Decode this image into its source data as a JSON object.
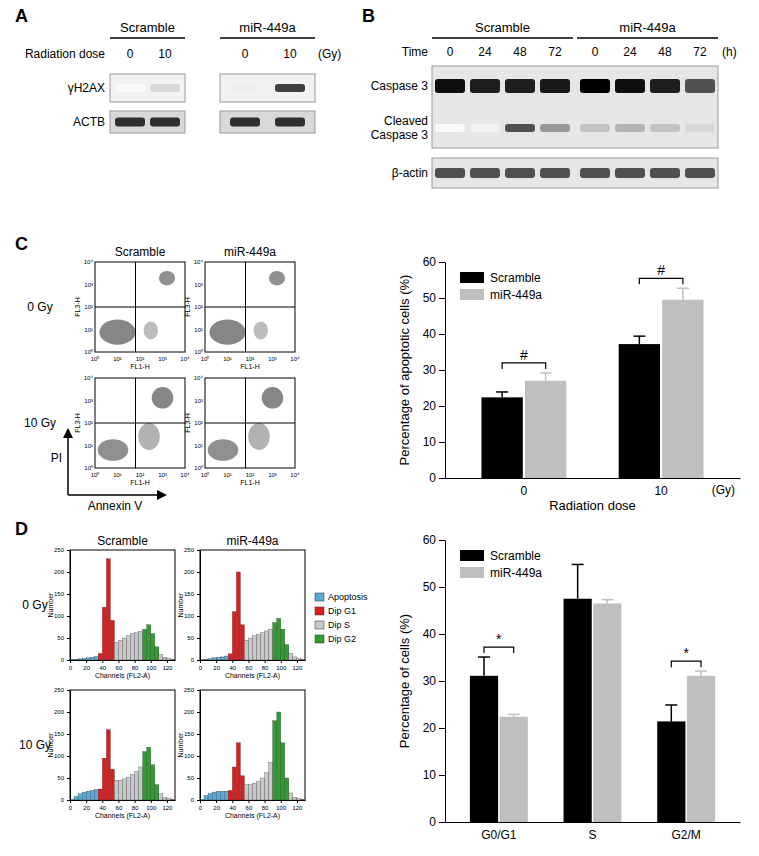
{
  "chart_data": [
    {
      "type": "bar",
      "categories": [
        "0",
        "10"
      ],
      "series": [
        {
          "name": "Scramble",
          "color": "#000000",
          "values": [
            22.4,
            37.2
          ],
          "errors": [
            1.5,
            2.2
          ]
        },
        {
          "name": "miR-449a",
          "color": "#bfbfbf",
          "values": [
            27.0,
            49.5
          ],
          "errors": [
            2.2,
            3.2
          ]
        }
      ],
      "ylim": [
        0,
        60
      ],
      "yticks": [
        0,
        10,
        20,
        30,
        40,
        50,
        60
      ],
      "y_label": "Percentage of apoptotic cells (%)",
      "x_label": "Radiation dose",
      "x_unit": "(Gy)",
      "legend": "upper left",
      "annotations": [
        {
          "text": "#",
          "category": "0"
        },
        {
          "text": "#",
          "category": "10"
        }
      ]
    },
    {
      "type": "bar",
      "categories": [
        "G0/G1",
        "S",
        "G2/M"
      ],
      "series": [
        {
          "name": "Scramble",
          "color": "#000000",
          "values": [
            31.1,
            47.5,
            21.4
          ],
          "errors": [
            4.0,
            7.3,
            3.5
          ]
        },
        {
          "name": "miR-449a",
          "color": "#bfbfbf",
          "values": [
            22.4,
            46.5,
            31.1
          ],
          "errors": [
            0.5,
            0.8,
            1.0
          ]
        }
      ],
      "ylim": [
        0,
        60
      ],
      "yticks": [
        0,
        10,
        20,
        30,
        40,
        50,
        60
      ],
      "y_label": "Percentage of cells (%)",
      "legend": "upper left",
      "annotations": [
        {
          "text": "*",
          "category": "G0/G1"
        },
        {
          "text": "*",
          "category": "G2/M"
        }
      ]
    }
  ],
  "figure": {
    "panel_labels": [
      "A",
      "B",
      "C",
      "D"
    ],
    "blot_a": {
      "groups": [
        "Scramble",
        "miR-449a"
      ],
      "row_header": "Radiation dose",
      "lanes": [
        0,
        10,
        0,
        10
      ],
      "unit": "(Gy)",
      "rows": [
        {
          "label": "γH2AX",
          "intensity": [
            0.03,
            0.25,
            0.12,
            0.8
          ]
        },
        {
          "label": "ACTB",
          "intensity": [
            0.85,
            0.85,
            0.85,
            0.85
          ]
        }
      ]
    },
    "blot_b": {
      "groups": [
        "Scramble",
        "miR-449a"
      ],
      "row_header": "Time",
      "lanes": [
        0,
        24,
        48,
        72,
        0,
        24,
        48,
        72
      ],
      "unit": "(h)",
      "rows": [
        {
          "label": [
            "Caspase 3"
          ],
          "intensity": [
            0.95,
            0.9,
            0.9,
            0.92,
            1.0,
            0.95,
            0.9,
            0.75
          ]
        },
        {
          "label": [
            "Cleaved",
            "Caspase 3"
          ],
          "intensity": [
            0.05,
            0.1,
            0.75,
            0.5,
            0.35,
            0.4,
            0.35,
            0.25
          ]
        },
        {
          "label": [
            "β-actin"
          ],
          "intensity": [
            0.75,
            0.75,
            0.75,
            0.75,
            0.75,
            0.75,
            0.75,
            0.75
          ]
        }
      ]
    },
    "flow": {
      "columns": [
        "Scramble",
        "miR-449a"
      ],
      "rows": [
        "0 Gy",
        "10 Gy"
      ],
      "x_axis": "FL1-H",
      "y_axis": "FL3-H",
      "tick_labels": [
        "10⁰",
        "10¹",
        "10²",
        "10³",
        "10⁴"
      ],
      "x_label": "Annexin V",
      "y_label": "PI"
    },
    "cell_cycle": {
      "columns": [
        "Scramble",
        "miR-449a"
      ],
      "rows": [
        "0 Gy",
        "10 Gy"
      ],
      "x_label": "Channels (FL2-A)",
      "y_label": "Number",
      "xlim": [
        0,
        130
      ],
      "xticks": [
        0,
        20,
        40,
        60,
        80,
        100,
        120
      ],
      "ylim": [
        0,
        250
      ],
      "yticks": [
        0,
        50,
        100,
        150,
        200,
        250
      ],
      "legend": [
        {
          "name": "Apoptosis",
          "color": "#5aa9d6"
        },
        {
          "name": "Dip G1",
          "color": "#e31a1c"
        },
        {
          "name": "Dip S",
          "color": "#c8c8c8"
        },
        {
          "name": "Dip G2",
          "color": "#2ca02c"
        }
      ],
      "histograms": [
        {
          "bins": [
            0,
            5,
            10,
            15,
            20,
            25,
            30,
            35,
            40,
            45,
            50,
            55,
            60,
            65,
            70,
            75,
            80,
            85,
            90,
            95,
            100,
            105,
            110,
            115,
            120,
            125,
            130
          ],
          "counts": [
            0,
            2,
            3,
            4,
            5,
            6,
            8,
            15,
            120,
            230,
            90,
            40,
            45,
            50,
            55,
            60,
            62,
            65,
            70,
            80,
            60,
            30,
            12,
            6,
            3,
            1
          ],
          "colors": [
            "#5aa9d6",
            "#5aa9d6",
            "#5aa9d6",
            "#5aa9d6",
            "#5aa9d6",
            "#5aa9d6",
            "#5aa9d6",
            "#e31a1c",
            "#e31a1c",
            "#e31a1c",
            "#e31a1c",
            "#c8c8c8",
            "#c8c8c8",
            "#c8c8c8",
            "#c8c8c8",
            "#c8c8c8",
            "#c8c8c8",
            "#c8c8c8",
            "#2ca02c",
            "#2ca02c",
            "#2ca02c",
            "#2ca02c",
            "#c8c8c8",
            "#c8c8c8",
            "#c8c8c8",
            "#c8c8c8"
          ]
        },
        {
          "bins": [
            0,
            5,
            10,
            15,
            20,
            25,
            30,
            35,
            40,
            45,
            50,
            55,
            60,
            65,
            70,
            75,
            80,
            85,
            90,
            95,
            100,
            105,
            110,
            115,
            120,
            125,
            130
          ],
          "counts": [
            0,
            2,
            3,
            5,
            6,
            7,
            9,
            14,
            110,
            200,
            80,
            45,
            50,
            55,
            58,
            62,
            66,
            70,
            85,
            95,
            70,
            35,
            14,
            7,
            3,
            1
          ],
          "colors": [
            "#5aa9d6",
            "#5aa9d6",
            "#5aa9d6",
            "#5aa9d6",
            "#5aa9d6",
            "#5aa9d6",
            "#5aa9d6",
            "#e31a1c",
            "#e31a1c",
            "#e31a1c",
            "#e31a1c",
            "#c8c8c8",
            "#c8c8c8",
            "#c8c8c8",
            "#c8c8c8",
            "#c8c8c8",
            "#c8c8c8",
            "#c8c8c8",
            "#2ca02c",
            "#2ca02c",
            "#2ca02c",
            "#2ca02c",
            "#c8c8c8",
            "#c8c8c8",
            "#c8c8c8",
            "#c8c8c8"
          ]
        },
        {
          "bins": [
            0,
            5,
            10,
            15,
            20,
            25,
            30,
            35,
            40,
            45,
            50,
            55,
            60,
            65,
            70,
            75,
            80,
            85,
            90,
            95,
            100,
            105,
            110,
            115,
            120,
            125,
            130
          ],
          "counts": [
            0,
            8,
            14,
            18,
            20,
            22,
            24,
            25,
            95,
            160,
            70,
            45,
            45,
            48,
            52,
            58,
            65,
            75,
            110,
            120,
            80,
            35,
            14,
            6,
            3,
            1
          ],
          "colors": [
            "#5aa9d6",
            "#5aa9d6",
            "#5aa9d6",
            "#5aa9d6",
            "#5aa9d6",
            "#5aa9d6",
            "#5aa9d6",
            "#e31a1c",
            "#e31a1c",
            "#e31a1c",
            "#e31a1c",
            "#c8c8c8",
            "#c8c8c8",
            "#c8c8c8",
            "#c8c8c8",
            "#c8c8c8",
            "#c8c8c8",
            "#c8c8c8",
            "#2ca02c",
            "#2ca02c",
            "#2ca02c",
            "#2ca02c",
            "#c8c8c8",
            "#c8c8c8",
            "#c8c8c8",
            "#c8c8c8"
          ]
        },
        {
          "bins": [
            0,
            5,
            10,
            15,
            20,
            25,
            30,
            35,
            40,
            45,
            50,
            55,
            60,
            65,
            70,
            75,
            80,
            85,
            90,
            95,
            100,
            105,
            110,
            115,
            120,
            125,
            130
          ],
          "counts": [
            0,
            10,
            15,
            18,
            20,
            20,
            20,
            22,
            75,
            130,
            55,
            35,
            35,
            38,
            42,
            50,
            62,
            85,
            180,
            200,
            130,
            50,
            16,
            6,
            3,
            1
          ],
          "colors": [
            "#5aa9d6",
            "#5aa9d6",
            "#5aa9d6",
            "#5aa9d6",
            "#5aa9d6",
            "#5aa9d6",
            "#5aa9d6",
            "#e31a1c",
            "#e31a1c",
            "#e31a1c",
            "#e31a1c",
            "#c8c8c8",
            "#c8c8c8",
            "#c8c8c8",
            "#c8c8c8",
            "#c8c8c8",
            "#c8c8c8",
            "#c8c8c8",
            "#2ca02c",
            "#2ca02c",
            "#2ca02c",
            "#2ca02c",
            "#c8c8c8",
            "#c8c8c8",
            "#c8c8c8",
            "#c8c8c8"
          ]
        }
      ]
    }
  }
}
